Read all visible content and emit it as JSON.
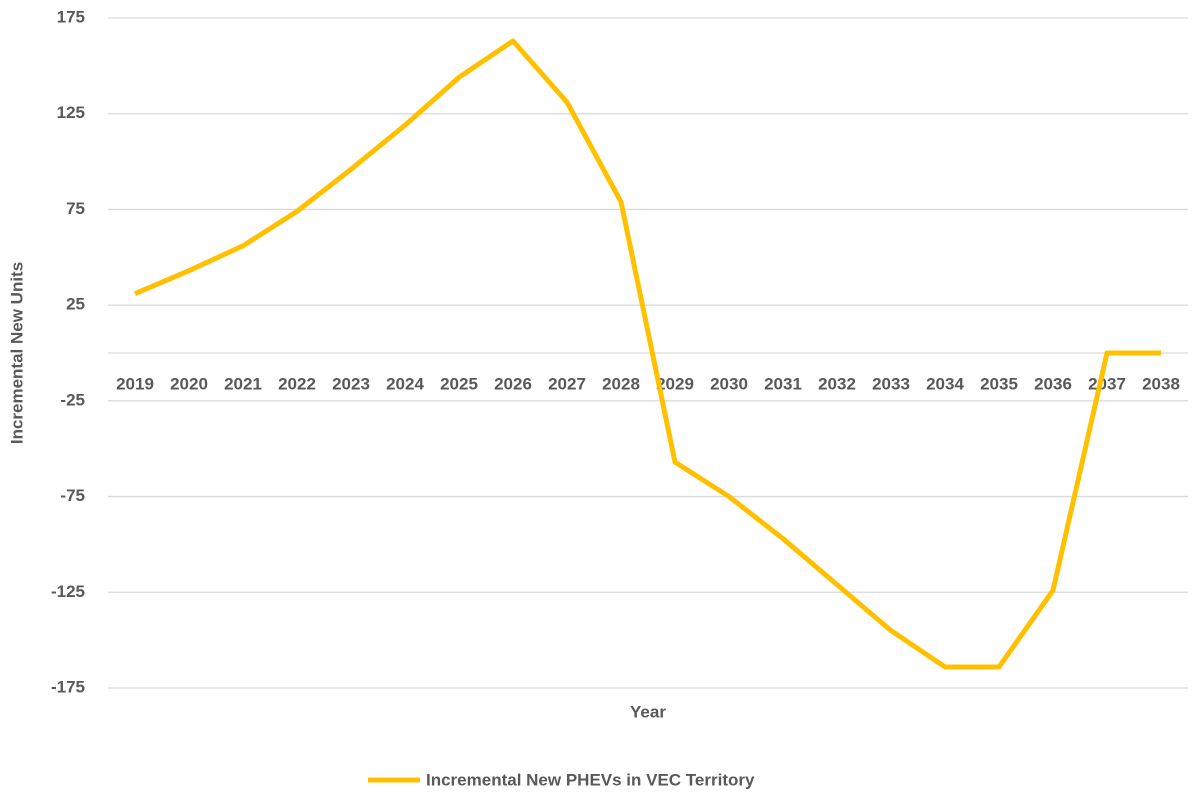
{
  "chart_data": {
    "type": "line",
    "y_label": "Incremental New Units",
    "x_label": "Year",
    "categories": [
      "2019",
      "2020",
      "2021",
      "2022",
      "2023",
      "2024",
      "2025",
      "2026",
      "2027",
      "2028",
      "2029",
      "2030",
      "2031",
      "2032",
      "2033",
      "2034",
      "2035",
      "2036",
      "2037",
      "2038"
    ],
    "series": [
      {
        "name": "Incremental New PHEVs in VEC Territory",
        "color": "#ffc000",
        "values": [
          31,
          43,
          56,
          74,
          96,
          119,
          144,
          163,
          131,
          79,
          -57,
          -75,
          -97,
          -121,
          -145,
          -164,
          -164,
          -124,
          0,
          0
        ]
      }
    ],
    "ylim": [
      -175,
      175
    ],
    "yticks": [
      -175,
      -125,
      -75,
      -25,
      25,
      75,
      125,
      175
    ],
    "grid": true,
    "legend": "bottom"
  }
}
